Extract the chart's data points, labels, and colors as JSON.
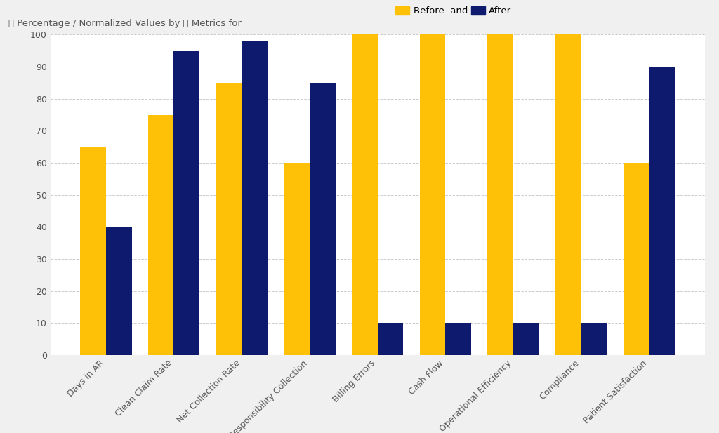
{
  "categories": [
    "Days in AR",
    "Clean Claim Rate",
    "Net Collection Rate",
    "Patient Responsibility Collection",
    "Billing Errors",
    "Cash Flow",
    "Operational Efficiency",
    "Compliance",
    "Patient Satisfaction"
  ],
  "before_values": [
    65,
    75,
    85,
    60,
    100,
    100,
    100,
    100,
    60
  ],
  "after_values": [
    40,
    95,
    98,
    85,
    10,
    10,
    10,
    10,
    90
  ],
  "before_color": "#FFC107",
  "after_color": "#0D1A6E",
  "background_color": "#F0F0F0",
  "plot_bg_color": "#FFFFFF",
  "grid_color": "#CCCCCC",
  "legend_before": "Before",
  "legend_after": "After",
  "ylim": [
    0,
    100
  ],
  "yticks": [
    0,
    10,
    20,
    30,
    40,
    50,
    60,
    70,
    80,
    90,
    100
  ],
  "bar_width": 0.38,
  "tick_fontsize": 9,
  "header_fontsize": 9.5,
  "text_color": "#555555"
}
